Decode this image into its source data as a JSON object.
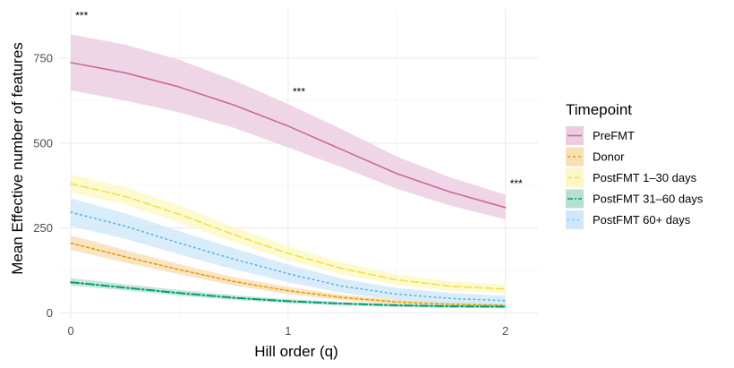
{
  "chart_data": {
    "type": "line",
    "xlabel": "Hill order (q)",
    "ylabel": "Mean Effective number of features",
    "xlim": [
      -0.05,
      2.15
    ],
    "ylim": [
      -15,
      895
    ],
    "x_ticks": [
      0,
      1,
      2
    ],
    "y_ticks": [
      0,
      250,
      500,
      750
    ],
    "grid": true,
    "legend": {
      "title": "Timepoint",
      "position": "right"
    },
    "x": [
      0,
      0.25,
      0.5,
      0.75,
      1.0,
      1.25,
      1.5,
      1.75,
      2.0
    ],
    "series": [
      {
        "name": "PreFMT",
        "color": "#C9699E",
        "fill": "#EBCCE0",
        "dash": "solid",
        "values": [
          737,
          707,
          665,
          612,
          550,
          480,
          410,
          355,
          310
        ],
        "lower": [
          655,
          625,
          590,
          545,
          487,
          428,
          365,
          315,
          275
        ],
        "upper": [
          820,
          790,
          745,
          685,
          615,
          540,
          460,
          398,
          348
        ]
      },
      {
        "name": "Donor",
        "color": "#E69F00",
        "fill": "#F8DFB5",
        "dash": "short",
        "values": [
          205,
          165,
          127,
          92,
          65,
          45,
          32,
          25,
          22
        ],
        "lower": [
          185,
          148,
          113,
          80,
          55,
          37,
          25,
          19,
          16
        ],
        "upper": [
          228,
          185,
          143,
          105,
          76,
          53,
          39,
          31,
          27
        ]
      },
      {
        "name": "PostFMT 1–30 days",
        "color": "#F0E442",
        "fill": "#FCF7C4",
        "dash": "long",
        "values": [
          380,
          343,
          290,
          230,
          175,
          130,
          97,
          78,
          70
        ],
        "lower": [
          355,
          318,
          266,
          208,
          155,
          113,
          82,
          65,
          58
        ],
        "upper": [
          407,
          370,
          316,
          253,
          196,
          148,
          113,
          92,
          83
        ]
      },
      {
        "name": "PostFMT 31–60 days",
        "color": "#009E73",
        "fill": "#B8E0D2",
        "dash": "longshort",
        "values": [
          90,
          74,
          58,
          44,
          34,
          27,
          22,
          19,
          18
        ],
        "lower": [
          80,
          66,
          50,
          38,
          28,
          21,
          17,
          14,
          13
        ],
        "upper": [
          102,
          84,
          67,
          52,
          40,
          32,
          27,
          24,
          22
        ]
      },
      {
        "name": "PostFMT 60+ days",
        "color": "#56B4E9",
        "fill": "#CFE7F8",
        "dash": "dot",
        "values": [
          296,
          255,
          205,
          158,
          115,
          78,
          55,
          42,
          36
        ],
        "lower": [
          255,
          218,
          172,
          128,
          90,
          58,
          38,
          27,
          21
        ],
        "upper": [
          337,
          293,
          240,
          190,
          142,
          100,
          73,
          58,
          50
        ]
      }
    ],
    "annotations": [
      {
        "text": "***",
        "x": 0.05,
        "y": 865
      },
      {
        "text": "***",
        "x": 1.05,
        "y": 640
      },
      {
        "text": "***",
        "x": 2.05,
        "y": 370
      }
    ]
  }
}
